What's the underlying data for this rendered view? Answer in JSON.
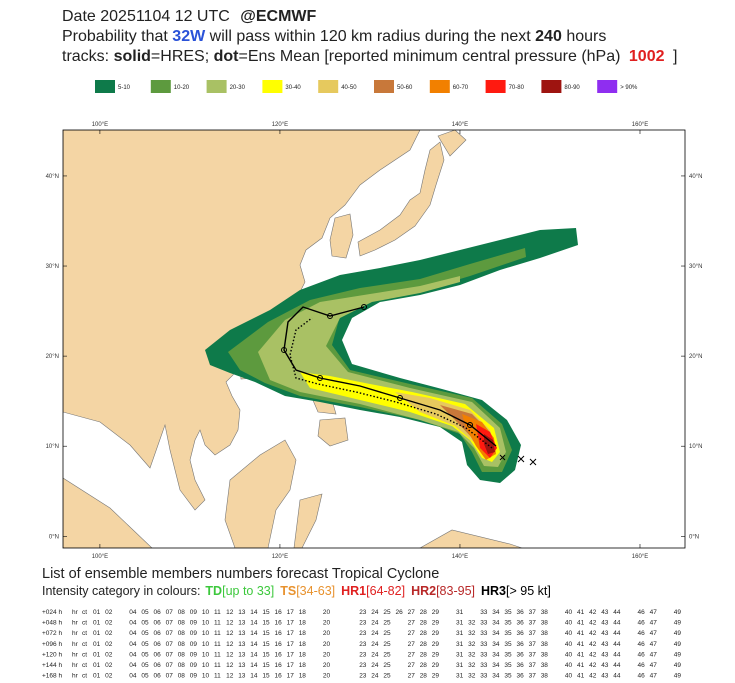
{
  "header": {
    "date": "Date 20251104 12 UTC",
    "source": "@ECMWF",
    "line2": [
      "Probability that",
      "32W",
      "will pass within 120 km radius during the next",
      "240",
      "hours"
    ],
    "line3": [
      "tracks:",
      "solid",
      "=HRES;",
      "dot",
      "=Ens Mean [reported minimum central pressure (hPa)",
      "1002",
      "]"
    ]
  },
  "legend": [
    {
      "label": "5-10",
      "color": "#0e7a4a"
    },
    {
      "label": "10-20",
      "color": "#5d9a3e"
    },
    {
      "label": "20-30",
      "color": "#a9c164"
    },
    {
      "label": "30-40",
      "color": "#ffff00"
    },
    {
      "label": "40-50",
      "color": "#e6c95e"
    },
    {
      "label": "50-60",
      "color": "#c8783a"
    },
    {
      "label": "60-70",
      "color": "#f28000"
    },
    {
      "label": "70-80",
      "color": "#ff1a10"
    },
    {
      "label": "80-90",
      "color": "#9e1410"
    },
    {
      "label": "> 90%",
      "color": "#8f2ef0"
    }
  ],
  "map": {
    "xlim": [
      95.9,
      165.0
    ],
    "ylim": [
      -1.3,
      45.1
    ],
    "xticks": [
      {
        "value": 100,
        "label": "100°E"
      },
      {
        "value": 120,
        "label": "120°E"
      },
      {
        "value": 140,
        "label": "140°E"
      },
      {
        "value": 160,
        "label": "160°E"
      }
    ],
    "yticks": [
      {
        "value": 0,
        "label": "0°N"
      },
      {
        "value": 10,
        "label": "10°N"
      },
      {
        "value": 20,
        "label": "20°N"
      },
      {
        "value": 30,
        "label": "30°N"
      },
      {
        "value": 40,
        "label": "40°N"
      }
    ]
  },
  "members": {
    "title": "List of ensemble members numbers forecast Tropical Cyclone",
    "intro": "Intensity category in colours:",
    "categories": [
      {
        "code": "TD",
        "range": "[up to 33]",
        "color": "#3cc83c"
      },
      {
        "code": "TS",
        "range": "[34-63]",
        "color": "#e8922e"
      },
      {
        "code": "HR1",
        "range": "[64-82]",
        "color": "#e02020"
      },
      {
        "code": "HR2",
        "range": "[83-95]",
        "color": "#b82828"
      },
      {
        "code": "HR3",
        "range": "[> 95 kt]",
        "color": "#000000"
      }
    ],
    "rows": [
      {
        "lead": "+024 h",
        "members": [
          "hr",
          "ct",
          "01",
          "02",
          "04",
          "05",
          "06",
          "07",
          "08",
          "09",
          "10",
          "11",
          "12",
          "13",
          "14",
          "15",
          "16",
          "17",
          "18",
          "20",
          "23",
          "24",
          "25",
          "26",
          "27",
          "28",
          "29",
          "31",
          "33",
          "34",
          "35",
          "36",
          "37",
          "38",
          "40",
          "41",
          "42",
          "43",
          "44",
          "46",
          "47",
          "49"
        ]
      },
      {
        "lead": "+048 h",
        "members": [
          "hr",
          "ct",
          "01",
          "02",
          "04",
          "05",
          "06",
          "07",
          "08",
          "09",
          "10",
          "11",
          "12",
          "13",
          "14",
          "15",
          "16",
          "17",
          "18",
          "20",
          "23",
          "24",
          "25",
          "27",
          "28",
          "29",
          "31",
          "32",
          "33",
          "34",
          "35",
          "36",
          "37",
          "38",
          "40",
          "41",
          "42",
          "43",
          "44",
          "46",
          "47",
          "49"
        ]
      },
      {
        "lead": "+072 h",
        "members": [
          "hr",
          "ct",
          "01",
          "02",
          "04",
          "05",
          "06",
          "07",
          "08",
          "09",
          "10",
          "11",
          "12",
          "13",
          "14",
          "15",
          "16",
          "17",
          "18",
          "20",
          "23",
          "24",
          "25",
          "27",
          "28",
          "29",
          "31",
          "32",
          "33",
          "34",
          "35",
          "36",
          "37",
          "38",
          "40",
          "41",
          "42",
          "43",
          "44",
          "46",
          "47",
          "49"
        ]
      },
      {
        "lead": "+096 h",
        "members": [
          "hr",
          "ct",
          "01",
          "02",
          "04",
          "05",
          "06",
          "07",
          "08",
          "09",
          "10",
          "11",
          "12",
          "13",
          "14",
          "15",
          "16",
          "17",
          "18",
          "20",
          "23",
          "24",
          "25",
          "27",
          "28",
          "29",
          "31",
          "32",
          "33",
          "34",
          "35",
          "36",
          "37",
          "38",
          "40",
          "41",
          "42",
          "43",
          "44",
          "46",
          "47",
          "49"
        ]
      },
      {
        "lead": "+120 h",
        "members": [
          "hr",
          "ct",
          "01",
          "02",
          "04",
          "05",
          "06",
          "07",
          "08",
          "09",
          "10",
          "11",
          "12",
          "13",
          "14",
          "15",
          "16",
          "17",
          "18",
          "20",
          "23",
          "24",
          "25",
          "27",
          "28",
          "29",
          "31",
          "32",
          "33",
          "34",
          "35",
          "36",
          "37",
          "38",
          "40",
          "41",
          "42",
          "43",
          "44",
          "46",
          "47",
          "49"
        ]
      },
      {
        "lead": "+144 h",
        "members": [
          "hr",
          "ct",
          "01",
          "02",
          "04",
          "05",
          "06",
          "07",
          "08",
          "09",
          "10",
          "11",
          "12",
          "13",
          "14",
          "15",
          "16",
          "17",
          "18",
          "20",
          "23",
          "24",
          "25",
          "27",
          "28",
          "29",
          "31",
          "32",
          "33",
          "34",
          "35",
          "36",
          "37",
          "38",
          "40",
          "41",
          "42",
          "43",
          "44",
          "46",
          "47",
          "49"
        ]
      },
      {
        "lead": "+168 h",
        "members": [
          "hr",
          "ct",
          "01",
          "02",
          "04",
          "05",
          "06",
          "07",
          "08",
          "09",
          "10",
          "11",
          "12",
          "13",
          "14",
          "15",
          "16",
          "17",
          "18",
          "20",
          "23",
          "24",
          "25",
          "27",
          "28",
          "29",
          "31",
          "32",
          "33",
          "34",
          "35",
          "36",
          "37",
          "38",
          "40",
          "41",
          "42",
          "43",
          "44",
          "46",
          "47",
          "49"
        ]
      }
    ]
  }
}
